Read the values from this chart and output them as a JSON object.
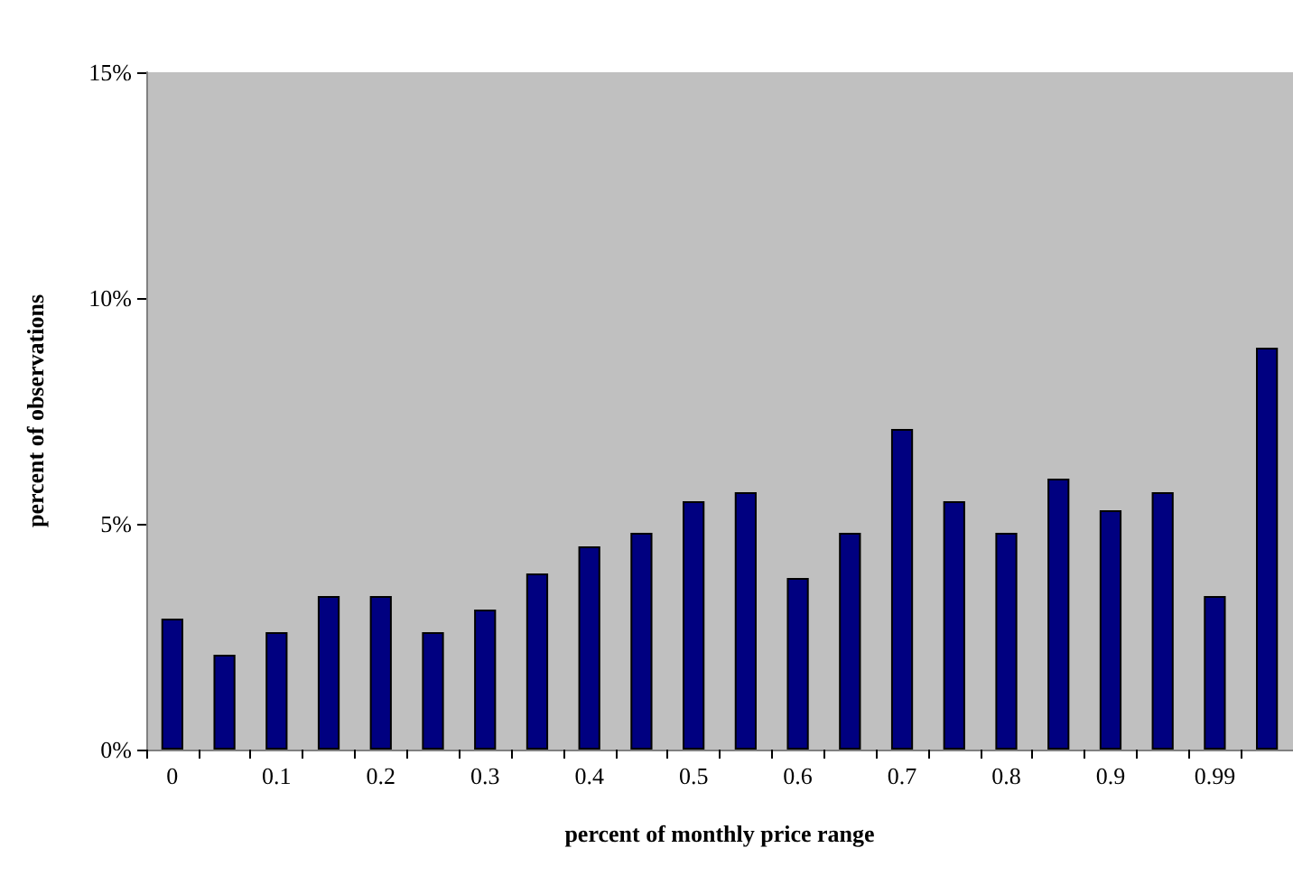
{
  "chart_data": {
    "type": "bar",
    "xlabel": "percent of monthly price range",
    "ylabel": "percent of observations",
    "categories": [
      "0",
      null,
      "0.1",
      null,
      "0.2",
      null,
      "0.3",
      null,
      "0.4",
      null,
      "0.5",
      null,
      "0.6",
      null,
      "0.7",
      null,
      "0.8",
      null,
      "0.9",
      null,
      "0.99",
      null
    ],
    "values": [
      2.9,
      2.1,
      2.6,
      3.4,
      3.4,
      2.6,
      3.1,
      3.9,
      4.5,
      4.8,
      5.5,
      5.7,
      3.8,
      4.8,
      7.1,
      5.5,
      4.8,
      6.0,
      5.3,
      5.7,
      3.4,
      8.9
    ],
    "color": "#000080",
    "ylim": [
      0,
      15
    ],
    "yticks": [
      {
        "value": 0,
        "label": "0%"
      },
      {
        "value": 5,
        "label": "5%"
      },
      {
        "value": 10,
        "label": "10%"
      },
      {
        "value": 15,
        "label": "15%"
      }
    ],
    "grid": false
  }
}
